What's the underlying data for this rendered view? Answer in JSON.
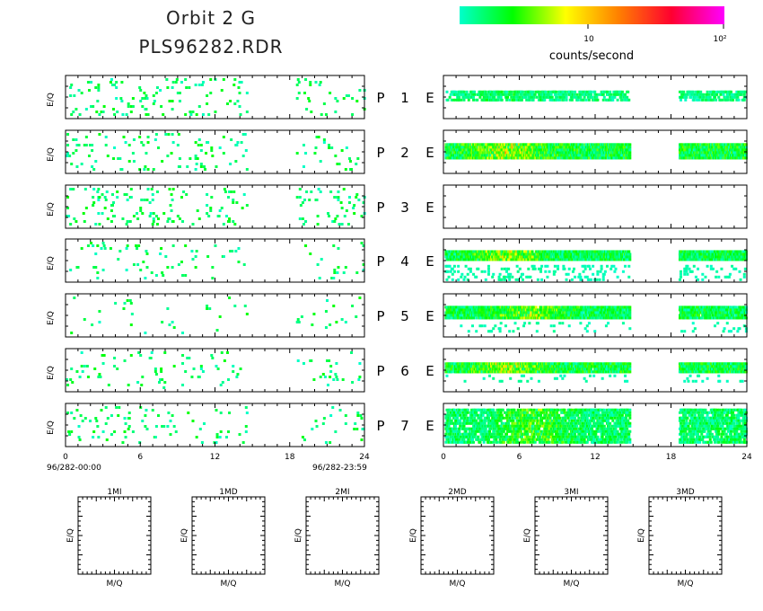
{
  "header": {
    "title_line1": "Orbit 2 G",
    "title_line2": "PLS96282.RDR"
  },
  "colorbar": {
    "label": "counts/second",
    "tick_labels": [
      "10",
      "10²"
    ],
    "stops": [
      "#00ffcc",
      "#00ff00",
      "#ffff00",
      "#ff8000",
      "#ff0030",
      "#ff00ff"
    ]
  },
  "time_axis": {
    "ticks": [
      "0",
      "6",
      "12",
      "18",
      "24"
    ],
    "start_label": "96/282-00:00",
    "end_label": "96/282-23:59"
  },
  "panels": {
    "ylabel": "E/Q",
    "channel_letters": [
      "P",
      "E"
    ],
    "numbers": [
      "1",
      "2",
      "3",
      "4",
      "5",
      "6",
      "7"
    ]
  },
  "bottom_panels": [
    {
      "title": "1MI",
      "xlabel": "M/Q",
      "ylabel": "E/Q"
    },
    {
      "title": "1MD",
      "xlabel": "M/Q",
      "ylabel": "E/Q"
    },
    {
      "title": "2MI",
      "xlabel": "M/Q",
      "ylabel": "E/Q"
    },
    {
      "title": "2MD",
      "xlabel": "M/Q",
      "ylabel": "E/Q"
    },
    {
      "title": "3MI",
      "xlabel": "M/Q",
      "ylabel": "E/Q"
    },
    {
      "title": "3MD",
      "xlabel": "M/Q",
      "ylabel": "E/Q"
    }
  ],
  "chart_data": {
    "type": "heatmap",
    "x_range_hours": [
      0,
      24
    ],
    "x_ticks": [
      0,
      6,
      12,
      18,
      24
    ],
    "data_gaps_hours": [
      [
        14.7,
        18.6
      ]
    ],
    "left_column": [
      {
        "channel": "P1",
        "coverage": [
          [
            0,
            14.5
          ],
          [
            18.5,
            24
          ]
        ],
        "density": 0.11,
        "max_level": 0.2
      },
      {
        "channel": "P2",
        "coverage": [
          [
            0,
            14.5
          ],
          [
            18.5,
            24
          ]
        ],
        "density": 0.09,
        "max_level": 0.2
      },
      {
        "channel": "P3",
        "coverage": [
          [
            0,
            14.5
          ],
          [
            18.5,
            24
          ]
        ],
        "density": 0.11,
        "max_level": 0.2
      },
      {
        "channel": "P4",
        "coverage": [
          [
            0,
            14.5
          ],
          [
            18.5,
            24
          ]
        ],
        "density": 0.06,
        "max_level": 0.2
      },
      {
        "channel": "P5",
        "coverage": [
          [
            0,
            14.5
          ],
          [
            18.5,
            24
          ]
        ],
        "density": 0.04,
        "max_level": 0.2
      },
      {
        "channel": "P6",
        "coverage": [
          [
            0,
            14.5
          ],
          [
            18.5,
            24
          ]
        ],
        "density": 0.06,
        "max_level": 0.2
      },
      {
        "channel": "P7",
        "coverage": [
          [
            0,
            14.5
          ],
          [
            18.5,
            24
          ]
        ],
        "density": 0.08,
        "max_level": 0.2
      }
    ],
    "right_column": [
      {
        "channel": "E1",
        "bands": [
          {
            "y": 0.35,
            "h": 0.22,
            "density": 0.5,
            "level": 0.15,
            "peak_hour": 5,
            "peak_level": 0.25
          }
        ]
      },
      {
        "channel": "E2",
        "bands": [
          {
            "y": 0.3,
            "h": 0.32,
            "density": 0.95,
            "level": 0.3,
            "peak_hour": 5,
            "peak_level": 0.62
          }
        ]
      },
      {
        "channel": "E3",
        "bands": []
      },
      {
        "channel": "E4",
        "bands": [
          {
            "y": 0.26,
            "h": 0.2,
            "density": 0.9,
            "level": 0.25,
            "peak_hour": 5,
            "peak_level": 0.58
          },
          {
            "y": 0.6,
            "h": 0.35,
            "density": 0.12,
            "level": 0.05,
            "peak_hour": 5,
            "peak_level": 0.1
          }
        ]
      },
      {
        "channel": "E5",
        "bands": [
          {
            "y": 0.28,
            "h": 0.26,
            "density": 0.85,
            "level": 0.25,
            "peak_hour": 7,
            "peak_level": 0.55
          },
          {
            "y": 0.65,
            "h": 0.2,
            "density": 0.05,
            "level": 0.05,
            "peak_hour": 7,
            "peak_level": 0.1
          }
        ]
      },
      {
        "channel": "E6",
        "bands": [
          {
            "y": 0.32,
            "h": 0.24,
            "density": 0.92,
            "level": 0.28,
            "peak_hour": 5,
            "peak_level": 0.6
          },
          {
            "y": 0.6,
            "h": 0.15,
            "density": 0.06,
            "level": 0.05,
            "peak_hour": 5,
            "peak_level": 0.1
          }
        ]
      },
      {
        "channel": "E7",
        "bands": [
          {
            "y": 0.12,
            "h": 0.78,
            "density": 0.6,
            "level": 0.2,
            "peak_hour": 7,
            "peak_level": 0.45
          }
        ]
      }
    ]
  }
}
